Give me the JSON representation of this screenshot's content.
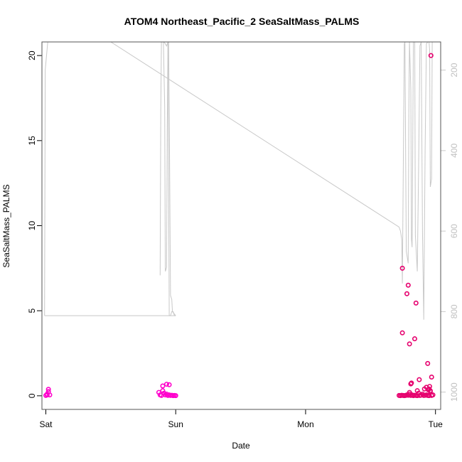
{
  "chart_data": {
    "type": "scatter",
    "title": "ATOM4 Northeast_Pacific_2 SeaSaltMass_PALMS",
    "xlabel": "Date",
    "ylabel": "SeaSaltMass_PALMS",
    "x_ticks": [
      "Sat",
      "Sun",
      "Mon",
      "Tue"
    ],
    "x_units": "days since Saturday 00:00",
    "xlim": [
      -0.03,
      3.04
    ],
    "ylim": [
      -0.8,
      20.8
    ],
    "y_ticks": [
      0,
      5,
      10,
      15,
      20
    ],
    "right_axis": {
      "description": "secondary axis, gray line (pressure/altitude profile), inverted",
      "ticks": [
        200,
        400,
        600,
        800,
        1000
      ],
      "lim": [
        1043,
        130
      ],
      "color": "#c8c8c8"
    },
    "grid": false,
    "series": [
      {
        "name": "",
        "mode": "markers",
        "marker": "open-circle",
        "x": [
          0.0,
          0.01,
          0.01,
          0.02,
          0.02,
          0.03,
          0.87,
          0.88,
          0.89,
          0.9,
          0.91,
          0.92,
          0.93,
          0.94,
          0.95,
          0.96,
          0.97,
          0.98,
          0.99,
          1.0,
          0.9,
          0.93,
          0.95,
          2.72,
          2.73,
          2.74,
          2.75,
          2.76,
          2.77,
          2.78,
          2.79,
          2.8,
          2.81,
          2.82,
          2.83,
          2.84,
          2.85,
          2.86,
          2.87,
          2.88,
          2.89,
          2.9,
          2.91,
          2.92,
          2.93,
          2.94,
          2.95,
          2.96,
          2.97,
          2.98,
          2.745,
          2.745,
          2.78,
          2.79,
          2.8,
          2.84,
          2.81,
          2.815,
          2.85,
          2.875,
          2.86,
          2.8,
          2.93,
          2.955,
          2.97,
          2.915,
          2.94,
          2.945,
          2.95,
          2.96,
          2.965
        ],
        "y": [
          0.02,
          0.05,
          0.1,
          0.25,
          0.38,
          0.05,
          0.2,
          0.05,
          0.02,
          0.3,
          0.15,
          0.05,
          0.1,
          0.02,
          0.05,
          0.02,
          0.03,
          0.01,
          0.02,
          0.01,
          0.58,
          0.68,
          0.65,
          0.02,
          0.01,
          0.03,
          0.02,
          0.01,
          0.02,
          0.05,
          0.03,
          0.1,
          0.02,
          0.05,
          0.01,
          0.03,
          0.02,
          0.01,
          0.15,
          0.02,
          0.04,
          0.1,
          0.02,
          0.03,
          0.05,
          0.02,
          0.01,
          0.3,
          0.02,
          0.05,
          7.5,
          3.7,
          6.0,
          6.5,
          3.05,
          3.35,
          0.7,
          0.75,
          5.45,
          0.95,
          0.3,
          0.2,
          0.5,
          0.55,
          1.1,
          0.4,
          1.9,
          0.35,
          0.4,
          0.25,
          20.0
        ],
        "colors": [
          "#ff00cc",
          "#ff00cc",
          "#ff00cc",
          "#ff00cc",
          "#ff00cc",
          "#ff00cc",
          "#ff00cc",
          "#ff00cc",
          "#ff00cc",
          "#ff00cc",
          "#ff00cc",
          "#ff00cc",
          "#ff00cc",
          "#ff00cc",
          "#ff00cc",
          "#ff00cc",
          "#ff00cc",
          "#ff00cc",
          "#ff00cc",
          "#ff00cc",
          "#ff00cc",
          "#ff00cc",
          "#ff00cc",
          "#e6006e",
          "#e6006e",
          "#e6006e",
          "#e6006e",
          "#e6006e",
          "#e6006e",
          "#e6006e",
          "#e6006e",
          "#e6006e",
          "#e6006e",
          "#e6006e",
          "#e6006e",
          "#e6006e",
          "#e6006e",
          "#e6006e",
          "#e6006e",
          "#e6006e",
          "#e6006e",
          "#e6006e",
          "#e6006e",
          "#e6006e",
          "#e6006e",
          "#e6006e",
          "#e6006e",
          "#e6006e",
          "#e6006e",
          "#e6006e",
          "#e6006e",
          "#e6006e",
          "#e6006e",
          "#e6006e",
          "#e6006e",
          "#e6006e",
          "#e6006e",
          "#e6006e",
          "#e6006e",
          "#e6006e",
          "#e6006e",
          "#e6006e",
          "#e6006e",
          "#e6006e",
          "#e6006e",
          "#e6006e",
          "#e6006e",
          "#e6006e",
          "#e6006e",
          "#e6006e",
          "#e6006e"
        ]
      },
      {
        "name": "",
        "mode": "line",
        "axis": "right",
        "color": "#c8c8c8",
        "segments": [
          {
            "x": [
              -0.01,
              -0.005,
              0.015,
              0.025,
              0.5,
              0.85,
              0.86,
              0.87,
              0.89,
              0.91,
              0.93,
              0.94,
              0.95,
              0.96,
              0.97,
              0.98,
              0.99,
              1.0
            ],
            "y": [
              810,
              200,
              130,
              130,
              130,
              130,
              130,
              130,
              130,
              130,
              140,
              130,
              810,
              810,
              800,
              800,
              810,
              810
            ]
          },
          {
            "x": [
              -0.01,
              1.0
            ],
            "y": [
              810,
              810
            ]
          },
          {
            "x": [
              0.88,
              0.885,
              0.89,
              0.905,
              0.915,
              0.92,
              0.93,
              0.935,
              0.94,
              0.945,
              0.95,
              0.96,
              0.97,
              0.975,
              1.0
            ],
            "y": [
              710,
              300,
              130,
              130,
              290,
              700,
              690,
              350,
              130,
              130,
              300,
              760,
              770,
              800,
              810
            ]
          },
          {
            "x": [
              0.5,
              2.72,
              2.73,
              2.74,
              2.745,
              2.76,
              2.765,
              2.775,
              2.79,
              2.795,
              2.8,
              2.81,
              2.815,
              2.82,
              2.83,
              2.84,
              2.845,
              2.86,
              2.87,
              2.88,
              2.89,
              2.9,
              2.91,
              2.92,
              2.93,
              2.94,
              2.95,
              2.955,
              2.96,
              2.97,
              2.975
            ],
            "y": [
              130,
              590,
              600,
              620,
              730,
              135,
              130,
              650,
              680,
              300,
              130,
              250,
              620,
              640,
              130,
              130,
              610,
              700,
              450,
              140,
              130,
              600,
              820,
              400,
              135,
              130,
              130,
              150,
              490,
              470,
              130
            ]
          }
        ]
      }
    ]
  }
}
